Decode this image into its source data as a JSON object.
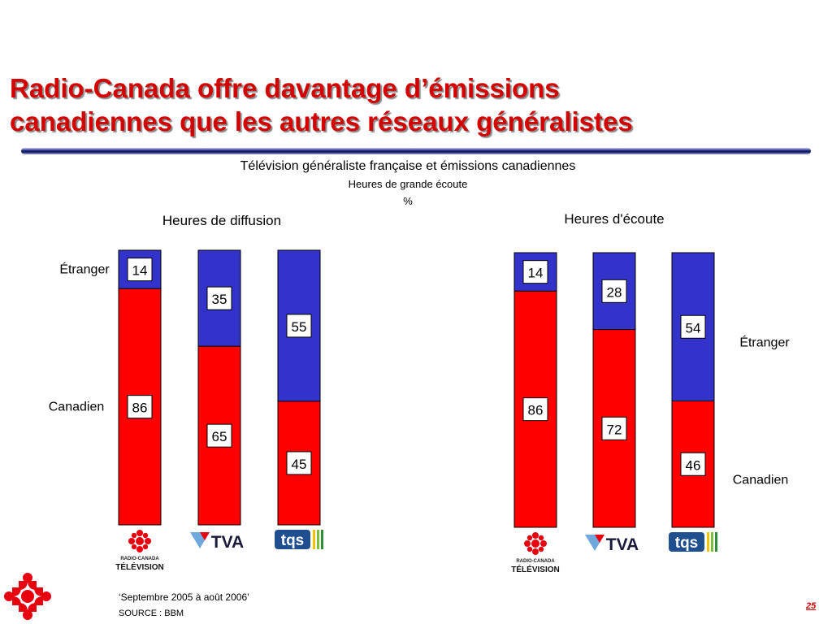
{
  "slide": {
    "title_line1": "Radio-Canada offre davantage d’émissions",
    "title_line2": "canadiennes que les autres réseaux généralistes",
    "subtitle": "Télévision généraliste française et émissions canadiennes",
    "subtitle2": "Heures de grande écoute",
    "unit": "%",
    "footnote": "‘Septembre 2005 à août 2006’",
    "source": "SOURCE : BBM",
    "page_number": "25"
  },
  "colors": {
    "canadien": "#ff0000",
    "etranger": "#3333cc",
    "title": "#d40000"
  },
  "logos": {
    "radio_canada_line1": "RADIO-CANADA",
    "radio_canada_line2": "TÉLÉVISION",
    "tva": "TVA",
    "tqs": "tqs"
  },
  "chart_data": [
    {
      "type": "bar",
      "stacked": true,
      "title": "Heures de diffusion",
      "categories": [
        "Radio-Canada Télévision",
        "TVA",
        "TQS"
      ],
      "series": [
        {
          "name": "Canadien",
          "values": [
            86,
            65,
            45
          ]
        },
        {
          "name": "Étranger",
          "values": [
            14,
            35,
            55
          ]
        }
      ],
      "ylim": [
        0,
        100
      ]
    },
    {
      "type": "bar",
      "stacked": true,
      "title": "Heures d'écoute",
      "categories": [
        "Radio-Canada Télévision",
        "TVA",
        "TQS"
      ],
      "series": [
        {
          "name": "Canadien",
          "values": [
            86,
            72,
            46
          ]
        },
        {
          "name": "Étranger",
          "values": [
            14,
            28,
            54
          ]
        }
      ],
      "ylim": [
        0,
        100
      ]
    }
  ]
}
